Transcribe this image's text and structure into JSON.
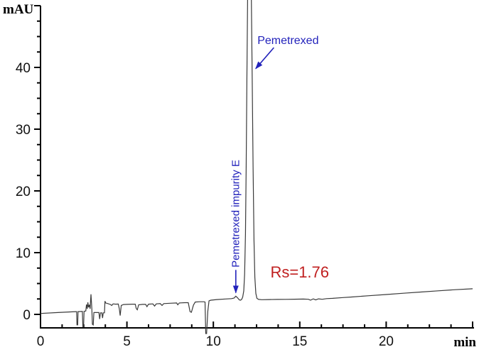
{
  "figure": {
    "type": "HPLC chromatogram",
    "background_color": "#ffffff"
  },
  "colors": {
    "trace": "#3a3a3a",
    "axis": "#000000",
    "annotation_blue": "#2222bb",
    "annotation_red": "#c02020",
    "tick_label": "#111111",
    "background": "#ffffff"
  },
  "chart_data": {
    "type": "line",
    "title": "",
    "xlabel": "min",
    "ylabel": "mAU",
    "xlim": [
      0,
      25
    ],
    "ylim": [
      -2.2,
      50
    ],
    "grid": false,
    "legend": "none",
    "x_major_ticks": [
      0,
      5,
      10,
      15,
      20,
      25
    ],
    "x_major_tick_labels": [
      "0",
      "5",
      "10",
      "15",
      "20",
      ""
    ],
    "x_minor_step": 1.25,
    "y_major_ticks": [
      0,
      10,
      20,
      30,
      40,
      50
    ],
    "y_major_tick_labels": [
      "0",
      "10",
      "20",
      "30",
      "40",
      ""
    ],
    "y_minor_step": 2.5,
    "peaks": [
      {
        "name": "Pemetrexed impurity E",
        "retention_time_min": 11.3,
        "height_mau": 3.0
      },
      {
        "name": "Pemetrexed",
        "retention_time_min": 12.1,
        "height_mau": "off-scale (>50)"
      }
    ],
    "resolution_text": "Rs=1.76",
    "series": [
      {
        "name": "chromatogram signal",
        "points": [
          [
            0,
            0.15
          ],
          [
            1,
            0.3
          ],
          [
            2.05,
            0.45
          ],
          [
            2.09,
            0.45
          ],
          [
            2.11,
            -1.7
          ],
          [
            2.15,
            -1.7
          ],
          [
            2.17,
            0.45
          ],
          [
            2.42,
            0.48
          ],
          [
            2.45,
            -2.0
          ],
          [
            2.49,
            -2.0
          ],
          [
            2.52,
            0.5
          ],
          [
            2.62,
            0.55
          ],
          [
            2.66,
            1.6
          ],
          [
            2.7,
            0.9
          ],
          [
            2.74,
            1.95
          ],
          [
            2.78,
            1.15
          ],
          [
            2.83,
            1.55
          ],
          [
            2.87,
            0.9
          ],
          [
            2.92,
            3.25
          ],
          [
            2.97,
            1.0
          ],
          [
            3.0,
            -1.6
          ],
          [
            3.05,
            -1.7
          ],
          [
            3.09,
            0.3
          ],
          [
            3.2,
            0.3
          ],
          [
            3.38,
            0.3
          ],
          [
            3.42,
            -0.75
          ],
          [
            3.47,
            0.25
          ],
          [
            3.55,
            0.25
          ],
          [
            3.59,
            -0.6
          ],
          [
            3.63,
            0.25
          ],
          [
            3.7,
            0.25
          ],
          [
            3.73,
            2.15
          ],
          [
            3.77,
            1.85
          ],
          [
            3.9,
            1.75
          ],
          [
            4.05,
            1.6
          ],
          [
            4.12,
            1.45
          ],
          [
            4.2,
            1.7
          ],
          [
            4.35,
            1.65
          ],
          [
            4.5,
            1.68
          ],
          [
            4.56,
            0.9
          ],
          [
            4.61,
            -0.2
          ],
          [
            4.67,
            1.45
          ],
          [
            4.8,
            1.6
          ],
          [
            5.0,
            1.62
          ],
          [
            5.3,
            1.65
          ],
          [
            5.48,
            1.65
          ],
          [
            5.54,
            0.95
          ],
          [
            5.6,
            0.75
          ],
          [
            5.68,
            1.55
          ],
          [
            5.9,
            1.62
          ],
          [
            6.08,
            1.62
          ],
          [
            6.16,
            1.25
          ],
          [
            6.25,
            1.65
          ],
          [
            6.5,
            1.7
          ],
          [
            6.6,
            1.35
          ],
          [
            6.7,
            1.7
          ],
          [
            6.93,
            1.75
          ],
          [
            7.03,
            1.45
          ],
          [
            7.13,
            1.75
          ],
          [
            7.5,
            1.8
          ],
          [
            7.88,
            1.85
          ],
          [
            7.94,
            1.55
          ],
          [
            8.03,
            1.85
          ],
          [
            8.35,
            1.9
          ],
          [
            8.55,
            1.9
          ],
          [
            8.65,
            0.45
          ],
          [
            8.73,
            0.35
          ],
          [
            8.85,
            1.5
          ],
          [
            8.95,
            2.0
          ],
          [
            9.2,
            2.05
          ],
          [
            9.45,
            2.05
          ],
          [
            9.52,
            2.0
          ],
          [
            9.56,
            -3.1
          ],
          [
            9.61,
            -3.1
          ],
          [
            9.68,
            0.5
          ],
          [
            9.75,
            2.2
          ],
          [
            9.85,
            2.3
          ],
          [
            10.2,
            2.4
          ],
          [
            10.7,
            2.5
          ],
          [
            11.05,
            2.55
          ],
          [
            11.2,
            2.65
          ],
          [
            11.3,
            2.95
          ],
          [
            11.4,
            2.7
          ],
          [
            11.5,
            2.35
          ],
          [
            11.58,
            2.3
          ],
          [
            11.64,
            2.45
          ],
          [
            11.7,
            2.8
          ],
          [
            11.76,
            3.8
          ],
          [
            11.81,
            6.5
          ],
          [
            11.86,
            13
          ],
          [
            11.9,
            24
          ],
          [
            11.94,
            38
          ],
          [
            11.98,
            51
          ],
          [
            12.2,
            51
          ],
          [
            12.25,
            38
          ],
          [
            12.3,
            24
          ],
          [
            12.35,
            12
          ],
          [
            12.4,
            6
          ],
          [
            12.46,
            3.4
          ],
          [
            12.52,
            2.6
          ],
          [
            12.62,
            2.42
          ],
          [
            12.8,
            2.38
          ],
          [
            13.2,
            2.4
          ],
          [
            13.7,
            2.42
          ],
          [
            14.2,
            2.44
          ],
          [
            14.7,
            2.46
          ],
          [
            15.2,
            2.48
          ],
          [
            15.5,
            2.45
          ],
          [
            15.62,
            2.3
          ],
          [
            15.78,
            2.52
          ],
          [
            15.92,
            2.35
          ],
          [
            16.08,
            2.52
          ],
          [
            16.3,
            2.45
          ],
          [
            16.55,
            2.55
          ],
          [
            16.9,
            2.6
          ],
          [
            17.5,
            2.72
          ],
          [
            18,
            2.82
          ],
          [
            19,
            3.02
          ],
          [
            20,
            3.22
          ],
          [
            21,
            3.42
          ],
          [
            22,
            3.62
          ],
          [
            23,
            3.82
          ],
          [
            24,
            4.0
          ],
          [
            25,
            4.15
          ]
        ]
      }
    ],
    "annotations": [
      {
        "id": "pemetrexed-label",
        "text": "Pemetrexed",
        "color": "#2222bb",
        "font_px": 16,
        "rotation": 0,
        "anchor": {
          "t": 12.55,
          "mau": 43.8
        },
        "arrow": {
          "from": [
            13.5,
            43.2
          ],
          "to": [
            12.45,
            39.8
          ]
        }
      },
      {
        "id": "impurity-label",
        "text": "Pemetrexed impurity E",
        "color": "#2222bb",
        "font_px": 15,
        "rotation": -90,
        "anchor": {
          "t": 11.3,
          "mau": 7.6
        },
        "arrow": {
          "from": [
            11.3,
            7.2
          ],
          "to": [
            11.3,
            3.5
          ]
        }
      },
      {
        "id": "resolution-label",
        "text": "Rs=1.76",
        "color": "#c02020",
        "font_px": 22,
        "rotation": 0,
        "anchor": {
          "t": 13.3,
          "mau": 6.0
        },
        "arrow": null
      }
    ]
  }
}
